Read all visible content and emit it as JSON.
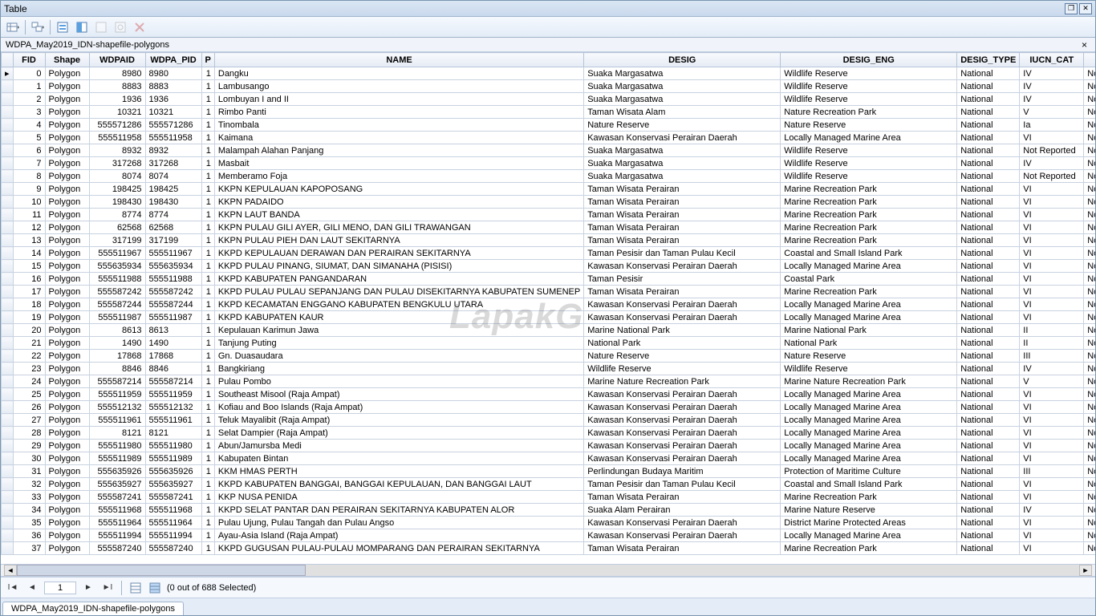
{
  "window_title": "Table",
  "sub_title": "WDPA_May2019_IDN-shapefile-polygons",
  "tab_label": "WDPA_May2019_IDN-shapefile-polygons",
  "nav": {
    "current": "1",
    "status": "(0 out of 688 Selected)"
  },
  "watermark": "LapakG",
  "columns": [
    {
      "key": "sel",
      "label": "",
      "cls": "col-sel"
    },
    {
      "key": "fid",
      "label": "FID",
      "cls": "col-fid"
    },
    {
      "key": "shape",
      "label": "Shape",
      "cls": "col-shape"
    },
    {
      "key": "wdpaid",
      "label": "WDPAID",
      "cls": "col-wdpaid"
    },
    {
      "key": "wdpa_pid",
      "label": "WDPA_PID",
      "cls": "col-wdpapid"
    },
    {
      "key": "p",
      "label": "P",
      "cls": "col-p"
    },
    {
      "key": "name",
      "label": "NAME",
      "cls": "col-name"
    },
    {
      "key": "desig",
      "label": "DESIG",
      "cls": "col-desig"
    },
    {
      "key": "desig_eng",
      "label": "DESIG_ENG",
      "cls": "col-desigeng"
    },
    {
      "key": "desig_type",
      "label": "DESIG_TYPE",
      "cls": "col-desigtype"
    },
    {
      "key": "iucn",
      "label": "IUCN_CAT",
      "cls": "col-iucn"
    },
    {
      "key": "extra",
      "label": "",
      "cls": "col-extra"
    }
  ],
  "rows": [
    {
      "fid": "0",
      "shape": "Polygon",
      "wdpaid": "8980",
      "wdpa_pid": "8980",
      "p": "1",
      "name": "Dangku",
      "desig": "Suaka Margasatwa",
      "desig_eng": "Wildlife Reserve",
      "desig_type": "National",
      "iucn": "IV",
      "extra": "Not"
    },
    {
      "fid": "1",
      "shape": "Polygon",
      "wdpaid": "8883",
      "wdpa_pid": "8883",
      "p": "1",
      "name": "Lambusango",
      "desig": "Suaka Margasatwa",
      "desig_eng": "Wildlife Reserve",
      "desig_type": "National",
      "iucn": "IV",
      "extra": "Not"
    },
    {
      "fid": "2",
      "shape": "Polygon",
      "wdpaid": "1936",
      "wdpa_pid": "1936",
      "p": "1",
      "name": "Lombuyan I and II",
      "desig": "Suaka Margasatwa",
      "desig_eng": "Wildlife Reserve",
      "desig_type": "National",
      "iucn": "IV",
      "extra": "Not"
    },
    {
      "fid": "3",
      "shape": "Polygon",
      "wdpaid": "10321",
      "wdpa_pid": "10321",
      "p": "1",
      "name": "Rimbo Panti",
      "desig": "Taman Wisata Alam",
      "desig_eng": "Nature Recreation Park",
      "desig_type": "National",
      "iucn": "V",
      "extra": "Not"
    },
    {
      "fid": "4",
      "shape": "Polygon",
      "wdpaid": "555571286",
      "wdpa_pid": "555571286",
      "p": "1",
      "name": "Tinombala",
      "desig": "Nature Reserve",
      "desig_eng": "Nature Reserve",
      "desig_type": "National",
      "iucn": "Ia",
      "extra": "Not"
    },
    {
      "fid": "5",
      "shape": "Polygon",
      "wdpaid": "555511958",
      "wdpa_pid": "555511958",
      "p": "1",
      "name": "Kaimana",
      "desig": "Kawasan Konservasi Perairan Daerah",
      "desig_eng": "Locally Managed Marine Area",
      "desig_type": "National",
      "iucn": "VI",
      "extra": "Not"
    },
    {
      "fid": "6",
      "shape": "Polygon",
      "wdpaid": "8932",
      "wdpa_pid": "8932",
      "p": "1",
      "name": "Malampah Alahan Panjang",
      "desig": "Suaka Margasatwa",
      "desig_eng": "Wildlife Reserve",
      "desig_type": "National",
      "iucn": "Not Reported",
      "extra": "Not"
    },
    {
      "fid": "7",
      "shape": "Polygon",
      "wdpaid": "317268",
      "wdpa_pid": "317268",
      "p": "1",
      "name": "Masbait",
      "desig": "Suaka Margasatwa",
      "desig_eng": "Wildlife Reserve",
      "desig_type": "National",
      "iucn": "IV",
      "extra": "Not"
    },
    {
      "fid": "8",
      "shape": "Polygon",
      "wdpaid": "8074",
      "wdpa_pid": "8074",
      "p": "1",
      "name": "Memberamo Foja",
      "desig": "Suaka Margasatwa",
      "desig_eng": "Wildlife Reserve",
      "desig_type": "National",
      "iucn": "Not Reported",
      "extra": "Not"
    },
    {
      "fid": "9",
      "shape": "Polygon",
      "wdpaid": "198425",
      "wdpa_pid": "198425",
      "p": "1",
      "name": "KKPN KEPULAUAN KAPOPOSANG",
      "desig": "Taman Wisata Perairan",
      "desig_eng": "Marine Recreation Park",
      "desig_type": "National",
      "iucn": "VI",
      "extra": "Not"
    },
    {
      "fid": "10",
      "shape": "Polygon",
      "wdpaid": "198430",
      "wdpa_pid": "198430",
      "p": "1",
      "name": "KKPN PADAIDO",
      "desig": "Taman Wisata Perairan",
      "desig_eng": "Marine Recreation Park",
      "desig_type": "National",
      "iucn": "VI",
      "extra": "Not"
    },
    {
      "fid": "11",
      "shape": "Polygon",
      "wdpaid": "8774",
      "wdpa_pid": "8774",
      "p": "1",
      "name": "KKPN LAUT BANDA",
      "desig": "Taman Wisata Perairan",
      "desig_eng": "Marine Recreation Park",
      "desig_type": "National",
      "iucn": "VI",
      "extra": "Not"
    },
    {
      "fid": "12",
      "shape": "Polygon",
      "wdpaid": "62568",
      "wdpa_pid": "62568",
      "p": "1",
      "name": "KKPN PULAU GILI AYER, GILI MENO, DAN GILI TRAWANGAN",
      "desig": "Taman Wisata Perairan",
      "desig_eng": "Marine Recreation Park",
      "desig_type": "National",
      "iucn": "VI",
      "extra": "Not"
    },
    {
      "fid": "13",
      "shape": "Polygon",
      "wdpaid": "317199",
      "wdpa_pid": "317199",
      "p": "1",
      "name": "KKPN PULAU PIEH DAN LAUT SEKITARNYA",
      "desig": "Taman Wisata Perairan",
      "desig_eng": "Marine Recreation Park",
      "desig_type": "National",
      "iucn": "VI",
      "extra": "Not"
    },
    {
      "fid": "14",
      "shape": "Polygon",
      "wdpaid": "555511967",
      "wdpa_pid": "555511967",
      "p": "1",
      "name": "KKPD KEPULAUAN DERAWAN DAN PERAIRAN SEKITARNYA",
      "desig": "Taman Pesisir dan Taman Pulau Kecil",
      "desig_eng": "Coastal and Small Island Park",
      "desig_type": "National",
      "iucn": "VI",
      "extra": "Not"
    },
    {
      "fid": "15",
      "shape": "Polygon",
      "wdpaid": "555635934",
      "wdpa_pid": "555635934",
      "p": "1",
      "name": "KKPD PULAU PINANG, SIUMAT,  DAN SIMANAHA (PISISI)",
      "desig": "Kawasan Konservasi Perairan Daerah",
      "desig_eng": "Locally Managed Marine Area",
      "desig_type": "National",
      "iucn": "VI",
      "extra": "Not"
    },
    {
      "fid": "16",
      "shape": "Polygon",
      "wdpaid": "555511988",
      "wdpa_pid": "555511988",
      "p": "1",
      "name": "KKPD KABUPATEN PANGANDARAN",
      "desig": "Taman Pesisir",
      "desig_eng": "Coastal Park",
      "desig_type": "National",
      "iucn": "VI",
      "extra": "Not"
    },
    {
      "fid": "17",
      "shape": "Polygon",
      "wdpaid": "555587242",
      "wdpa_pid": "555587242",
      "p": "1",
      "name": "KKPD PULAU PULAU SEPANJANG DAN PULAU DISEKITARNYA KABUPATEN SUMENEP",
      "desig": "Taman Wisata Perairan",
      "desig_eng": "Marine Recreation Park",
      "desig_type": "National",
      "iucn": "VI",
      "extra": "Not"
    },
    {
      "fid": "18",
      "shape": "Polygon",
      "wdpaid": "555587244",
      "wdpa_pid": "555587244",
      "p": "1",
      "name": "KKPD KECAMATAN ENGGANO KABUPATEN BENGKULU UTARA",
      "desig": "Kawasan Konservasi Perairan Daerah",
      "desig_eng": "Locally Managed Marine Area",
      "desig_type": "National",
      "iucn": "VI",
      "extra": "Not"
    },
    {
      "fid": "19",
      "shape": "Polygon",
      "wdpaid": "555511987",
      "wdpa_pid": "555511987",
      "p": "1",
      "name": "KKPD KABUPATEN KAUR",
      "desig": "Kawasan Konservasi Perairan Daerah",
      "desig_eng": "Locally Managed Marine Area",
      "desig_type": "National",
      "iucn": "VI",
      "extra": "Not"
    },
    {
      "fid": "20",
      "shape": "Polygon",
      "wdpaid": "8613",
      "wdpa_pid": "8613",
      "p": "1",
      "name": "Kepulauan Karimun Jawa",
      "desig": "Marine National Park",
      "desig_eng": "Marine National Park",
      "desig_type": "National",
      "iucn": "II",
      "extra": "Not"
    },
    {
      "fid": "21",
      "shape": "Polygon",
      "wdpaid": "1490",
      "wdpa_pid": "1490",
      "p": "1",
      "name": "Tanjung Puting",
      "desig": "National Park",
      "desig_eng": "National Park",
      "desig_type": "National",
      "iucn": "II",
      "extra": "Not"
    },
    {
      "fid": "22",
      "shape": "Polygon",
      "wdpaid": "17868",
      "wdpa_pid": "17868",
      "p": "1",
      "name": "Gn. Duasaudara",
      "desig": "Nature Reserve",
      "desig_eng": "Nature Reserve",
      "desig_type": "National",
      "iucn": "III",
      "extra": "Not"
    },
    {
      "fid": "23",
      "shape": "Polygon",
      "wdpaid": "8846",
      "wdpa_pid": "8846",
      "p": "1",
      "name": "Bangkiriang",
      "desig": "Wildlife Reserve",
      "desig_eng": "Wildlife Reserve",
      "desig_type": "National",
      "iucn": "IV",
      "extra": "Not"
    },
    {
      "fid": "24",
      "shape": "Polygon",
      "wdpaid": "555587214",
      "wdpa_pid": "555587214",
      "p": "1",
      "name": "Pulau Pombo",
      "desig": "Marine Nature Recreation Park",
      "desig_eng": "Marine Nature Recreation Park",
      "desig_type": "National",
      "iucn": "V",
      "extra": "Not"
    },
    {
      "fid": "25",
      "shape": "Polygon",
      "wdpaid": "555511959",
      "wdpa_pid": "555511959",
      "p": "1",
      "name": "Southeast Misool (Raja Ampat)",
      "desig": "Kawasan Konservasi Perairan Daerah",
      "desig_eng": "Locally Managed Marine Area",
      "desig_type": "National",
      "iucn": "VI",
      "extra": "Not"
    },
    {
      "fid": "26",
      "shape": "Polygon",
      "wdpaid": "555512132",
      "wdpa_pid": "555512132",
      "p": "1",
      "name": "Kofiau and Boo Islands (Raja Ampat)",
      "desig": "Kawasan Konservasi Perairan Daerah",
      "desig_eng": "Locally Managed Marine Area",
      "desig_type": "National",
      "iucn": "VI",
      "extra": "Not"
    },
    {
      "fid": "27",
      "shape": "Polygon",
      "wdpaid": "555511961",
      "wdpa_pid": "555511961",
      "p": "1",
      "name": "Teluk Mayalibit (Raja Ampat)",
      "desig": "Kawasan Konservasi Perairan Daerah",
      "desig_eng": "Locally Managed Marine Area",
      "desig_type": "National",
      "iucn": "VI",
      "extra": "Not"
    },
    {
      "fid": "28",
      "shape": "Polygon",
      "wdpaid": "8121",
      "wdpa_pid": "8121",
      "p": "1",
      "name": "Selat Dampier (Raja Ampat)",
      "desig": "Kawasan Konservasi Perairan Daerah",
      "desig_eng": "Locally Managed Marine Area",
      "desig_type": "National",
      "iucn": "VI",
      "extra": "Not"
    },
    {
      "fid": "29",
      "shape": "Polygon",
      "wdpaid": "555511980",
      "wdpa_pid": "555511980",
      "p": "1",
      "name": "Abun/Jamursba Medi",
      "desig": "Kawasan Konservasi Perairan Daerah",
      "desig_eng": "Locally Managed Marine Area",
      "desig_type": "National",
      "iucn": "VI",
      "extra": "Not"
    },
    {
      "fid": "30",
      "shape": "Polygon",
      "wdpaid": "555511989",
      "wdpa_pid": "555511989",
      "p": "1",
      "name": "Kabupaten Bintan",
      "desig": "Kawasan Konservasi Perairan Daerah",
      "desig_eng": "Locally Managed Marine Area",
      "desig_type": "National",
      "iucn": "VI",
      "extra": "Not"
    },
    {
      "fid": "31",
      "shape": "Polygon",
      "wdpaid": "555635926",
      "wdpa_pid": "555635926",
      "p": "1",
      "name": "KKM HMAS PERTH",
      "desig": "Perlindungan Budaya Maritim",
      "desig_eng": "Protection of Maritime Culture",
      "desig_type": "National",
      "iucn": "III",
      "extra": "Not"
    },
    {
      "fid": "32",
      "shape": "Polygon",
      "wdpaid": "555635927",
      "wdpa_pid": "555635927",
      "p": "1",
      "name": "KKPD KABUPATEN BANGGAI, BANGGAI KEPULAUAN, DAN BANGGAI LAUT",
      "desig": "Taman Pesisir dan Taman Pulau Kecil",
      "desig_eng": "Coastal and Small Island Park",
      "desig_type": "National",
      "iucn": "VI",
      "extra": "Not"
    },
    {
      "fid": "33",
      "shape": "Polygon",
      "wdpaid": "555587241",
      "wdpa_pid": "555587241",
      "p": "1",
      "name": "KKP NUSA PENIDA",
      "desig": "Taman Wisata Perairan",
      "desig_eng": "Marine Recreation Park",
      "desig_type": "National",
      "iucn": "VI",
      "extra": "Not"
    },
    {
      "fid": "34",
      "shape": "Polygon",
      "wdpaid": "555511968",
      "wdpa_pid": "555511968",
      "p": "1",
      "name": "KKPD SELAT PANTAR DAN PERAIRAN SEKITARNYA KABUPATEN ALOR",
      "desig": "Suaka Alam Perairan",
      "desig_eng": "Marine Nature Reserve",
      "desig_type": "National",
      "iucn": "IV",
      "extra": "Not"
    },
    {
      "fid": "35",
      "shape": "Polygon",
      "wdpaid": "555511964",
      "wdpa_pid": "555511964",
      "p": "1",
      "name": "Pulau Ujung, Pulau Tangah dan Pulau Angso",
      "desig": "Kawasan Konservasi Perairan Daerah",
      "desig_eng": "District Marine Protected Areas",
      "desig_type": "National",
      "iucn": "VI",
      "extra": "Not"
    },
    {
      "fid": "36",
      "shape": "Polygon",
      "wdpaid": "555511994",
      "wdpa_pid": "555511994",
      "p": "1",
      "name": "Ayau-Asia Island (Raja Ampat)",
      "desig": "Kawasan Konservasi Perairan Daerah",
      "desig_eng": "Locally Managed Marine Area",
      "desig_type": "National",
      "iucn": "VI",
      "extra": "Not"
    },
    {
      "fid": "37",
      "shape": "Polygon",
      "wdpaid": "555587240",
      "wdpa_pid": "555587240",
      "p": "1",
      "name": "KKPD GUGUSAN PULAU-PULAU MOMPARANG DAN PERAIRAN SEKITARNYA",
      "desig": "Taman Wisata Perairan",
      "desig_eng": "Marine Recreation Park",
      "desig_type": "National",
      "iucn": "VI",
      "extra": "Not"
    }
  ]
}
